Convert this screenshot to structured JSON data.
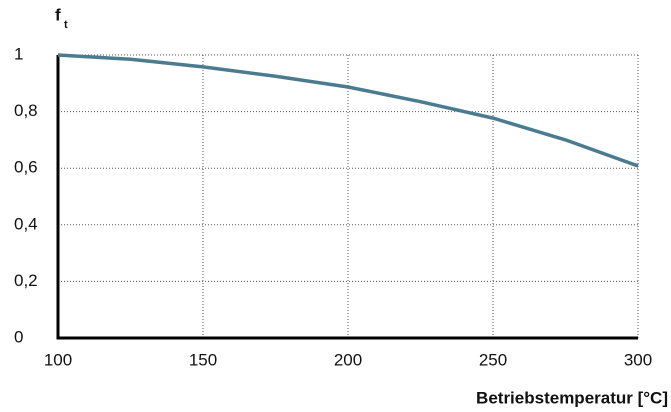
{
  "chart_data": {
    "type": "line",
    "ylabel": {
      "main": "f",
      "sub": "t"
    },
    "xlabel": "Betriebstemperatur [°C]",
    "x": [
      100,
      125,
      150,
      175,
      200,
      225,
      250,
      275,
      300
    ],
    "series": [
      {
        "name": "f_t",
        "color": "#4b7b8e",
        "values": [
          1.0,
          0.985,
          0.958,
          0.925,
          0.887,
          0.835,
          0.777,
          0.7,
          0.608
        ]
      }
    ],
    "xlim": [
      100,
      300
    ],
    "xticks": [
      100,
      150,
      200,
      250,
      300
    ],
    "ylim": [
      0,
      1
    ],
    "yticks": [
      0,
      {
        "value": 0.2,
        "label": "0,2"
      },
      {
        "value": 0.4,
        "label": "0,4"
      },
      {
        "value": 0.6,
        "label": "0,6"
      },
      {
        "value": 0.8,
        "label": "0,8"
      },
      1
    ],
    "grid": true
  }
}
